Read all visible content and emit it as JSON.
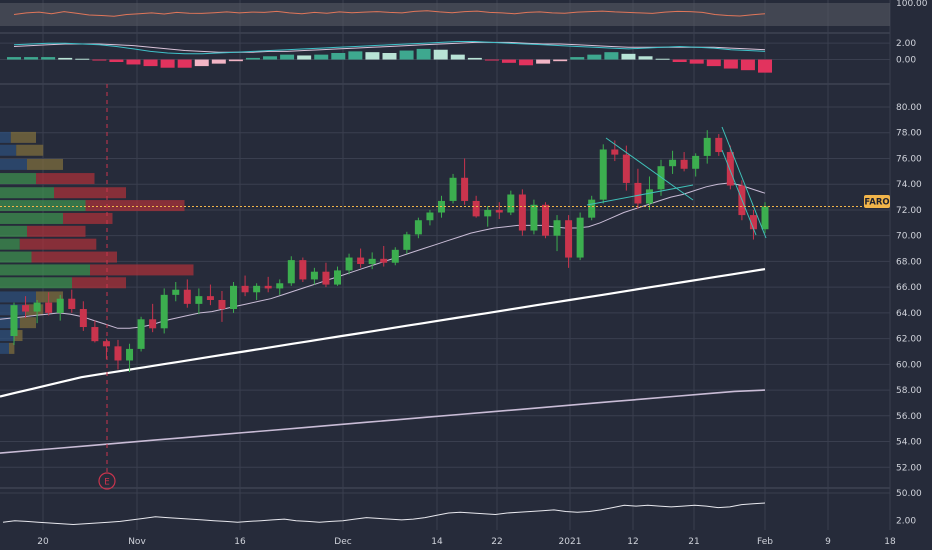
{
  "ticker": {
    "symbol": "FARO",
    "last_price": 72.27
  },
  "colors": {
    "background": "#262b3a",
    "grid": "#3a3f4f",
    "up": "#3cae4f",
    "down": "#c9344d",
    "ma_fast": "#c9bcd6",
    "ma_mid": "#ffffff",
    "ma_slow": "#c9bcd6",
    "trend": "#3fc0b8",
    "price_line": "#f2b54a",
    "vp_up": "#3e8f4f",
    "vp_down": "#a83239",
    "vp_up_va": "#2e4f7a",
    "vp_down_va": "#7d6e3d"
  },
  "chart_data": [
    {
      "type": "line",
      "panel": "rsi",
      "y_tick_labels": [
        "100.00"
      ],
      "ylim": [
        0,
        100
      ],
      "series": [
        {
          "values": [
            52,
            58,
            61,
            55,
            63,
            57,
            50,
            48,
            45,
            52,
            55,
            58,
            54,
            60,
            57,
            56,
            59,
            62,
            58,
            61,
            60,
            64,
            58,
            55,
            60,
            57,
            62,
            59,
            61,
            63,
            60,
            58,
            64,
            66,
            62,
            59,
            63,
            65,
            60,
            58,
            55,
            60,
            62,
            58,
            57,
            61,
            63,
            65,
            62,
            60,
            58,
            56,
            61,
            64,
            63,
            60,
            52,
            48,
            46,
            51,
            55
          ]
        }
      ]
    },
    {
      "type": "bar",
      "panel": "macd",
      "y_tick_labels": [
        "2.00",
        "0.00"
      ],
      "ylim": [
        -2.5,
        3
      ],
      "macd_line": [
        1.8,
        1.9,
        2.0,
        2.0,
        1.9,
        1.8,
        1.6,
        1.3,
        1.0,
        0.8,
        0.7,
        0.7,
        0.8,
        0.9,
        1.0,
        1.1,
        1.2,
        1.3,
        1.4,
        1.5,
        1.6,
        1.7,
        1.8,
        1.9,
        2.0,
        2.1,
        2.2,
        2.2,
        2.1,
        2.0,
        1.9,
        1.8,
        1.7,
        1.6,
        1.5,
        1.4,
        1.3,
        1.4,
        1.5,
        1.6,
        1.5,
        1.4,
        1.2,
        1.1,
        1.0
      ],
      "signal_line": [
        1.6,
        1.7,
        1.8,
        1.9,
        1.9,
        1.9,
        1.8,
        1.7,
        1.5,
        1.3,
        1.1,
        1.0,
        0.9,
        0.9,
        0.9,
        1.0,
        1.0,
        1.1,
        1.2,
        1.3,
        1.4,
        1.5,
        1.6,
        1.7,
        1.8,
        1.9,
        2.0,
        2.1,
        2.1,
        2.1,
        2.0,
        1.9,
        1.9,
        1.8,
        1.7,
        1.6,
        1.5,
        1.5,
        1.5,
        1.5,
        1.5,
        1.5,
        1.4,
        1.3,
        1.2
      ],
      "histogram": [
        0.3,
        0.3,
        0.3,
        0.2,
        0.1,
        -0.1,
        -0.3,
        -0.6,
        -0.8,
        -1.0,
        -1.0,
        -0.8,
        -0.5,
        -0.2,
        0.2,
        0.4,
        0.6,
        0.5,
        0.6,
        0.8,
        1.0,
        0.9,
        0.8,
        1.1,
        1.3,
        1.2,
        0.6,
        0.2,
        -0.1,
        -0.4,
        -0.7,
        -0.5,
        -0.2,
        0.3,
        0.6,
        0.9,
        0.7,
        0.4,
        0.1,
        -0.3,
        -0.5,
        -0.8,
        -1.1,
        -1.3,
        -1.6
      ]
    },
    {
      "type": "candlestick",
      "panel": "price",
      "y_tick_labels": [
        "80.00",
        "78.00",
        "76.00",
        "74.00",
        "72.00",
        "70.00",
        "68.00",
        "66.00",
        "64.00",
        "62.00",
        "60.00",
        "58.00",
        "56.00",
        "54.00",
        "52.00",
        "50.00"
      ],
      "ylim": [
        49.3,
        81.4
      ],
      "x_tick_labels": [
        "20",
        "Nov",
        "16",
        "Dec",
        "14",
        "22",
        "2021",
        "12",
        "21",
        "Feb",
        "9",
        "18"
      ],
      "earnings_marker": "E",
      "candles": [
        {
          "o": 62.2,
          "h": 64.8,
          "l": 61.5,
          "c": 64.6
        },
        {
          "o": 64.6,
          "h": 65.3,
          "l": 63.6,
          "c": 64.1
        },
        {
          "o": 64.1,
          "h": 65.0,
          "l": 63.2,
          "c": 64.8
        },
        {
          "o": 64.8,
          "h": 65.6,
          "l": 63.8,
          "c": 64.0
        },
        {
          "o": 64.0,
          "h": 65.4,
          "l": 63.4,
          "c": 65.1
        },
        {
          "o": 65.1,
          "h": 65.8,
          "l": 64.0,
          "c": 64.3
        },
        {
          "o": 64.3,
          "h": 64.9,
          "l": 62.6,
          "c": 62.9
        },
        {
          "o": 62.9,
          "h": 63.4,
          "l": 61.7,
          "c": 61.8
        },
        {
          "o": 61.8,
          "h": 62.0,
          "l": 60.4,
          "c": 61.4
        },
        {
          "o": 61.4,
          "h": 61.9,
          "l": 59.6,
          "c": 60.3
        },
        {
          "o": 60.3,
          "h": 61.6,
          "l": 59.4,
          "c": 61.2
        },
        {
          "o": 61.2,
          "h": 63.7,
          "l": 61.0,
          "c": 63.5
        },
        {
          "o": 63.5,
          "h": 64.7,
          "l": 62.5,
          "c": 62.8
        },
        {
          "o": 62.8,
          "h": 65.9,
          "l": 62.4,
          "c": 65.4
        },
        {
          "o": 65.4,
          "h": 66.4,
          "l": 64.9,
          "c": 65.8
        },
        {
          "o": 65.8,
          "h": 66.6,
          "l": 64.4,
          "c": 64.7
        },
        {
          "o": 64.7,
          "h": 65.9,
          "l": 63.9,
          "c": 65.3
        },
        {
          "o": 65.3,
          "h": 66.2,
          "l": 64.6,
          "c": 65.0
        },
        {
          "o": 65.0,
          "h": 65.7,
          "l": 63.3,
          "c": 64.3
        },
        {
          "o": 64.3,
          "h": 66.4,
          "l": 64.0,
          "c": 66.1
        },
        {
          "o": 66.1,
          "h": 66.9,
          "l": 65.3,
          "c": 65.6
        },
        {
          "o": 65.6,
          "h": 66.3,
          "l": 65.0,
          "c": 66.1
        },
        {
          "o": 66.1,
          "h": 66.8,
          "l": 65.6,
          "c": 65.9
        },
        {
          "o": 65.9,
          "h": 66.6,
          "l": 65.4,
          "c": 66.3
        },
        {
          "o": 66.3,
          "h": 68.4,
          "l": 66.1,
          "c": 68.1
        },
        {
          "o": 68.1,
          "h": 68.3,
          "l": 66.4,
          "c": 66.6
        },
        {
          "o": 66.6,
          "h": 67.5,
          "l": 66.2,
          "c": 67.2
        },
        {
          "o": 67.2,
          "h": 67.9,
          "l": 66.0,
          "c": 66.2
        },
        {
          "o": 66.2,
          "h": 67.6,
          "l": 66.1,
          "c": 67.3
        },
        {
          "o": 67.3,
          "h": 68.6,
          "l": 67.0,
          "c": 68.3
        },
        {
          "o": 68.3,
          "h": 69.0,
          "l": 67.5,
          "c": 67.8
        },
        {
          "o": 67.8,
          "h": 68.7,
          "l": 67.4,
          "c": 68.2
        },
        {
          "o": 68.2,
          "h": 69.2,
          "l": 67.6,
          "c": 67.9
        },
        {
          "o": 67.9,
          "h": 69.1,
          "l": 67.7,
          "c": 68.9
        },
        {
          "o": 68.9,
          "h": 70.3,
          "l": 68.6,
          "c": 70.1
        },
        {
          "o": 70.1,
          "h": 71.4,
          "l": 69.8,
          "c": 71.2
        },
        {
          "o": 71.2,
          "h": 72.0,
          "l": 70.8,
          "c": 71.8
        },
        {
          "o": 71.8,
          "h": 73.1,
          "l": 71.4,
          "c": 72.7
        },
        {
          "o": 72.7,
          "h": 74.8,
          "l": 72.5,
          "c": 74.5
        },
        {
          "o": 74.5,
          "h": 76.0,
          "l": 72.4,
          "c": 72.7
        },
        {
          "o": 72.7,
          "h": 73.1,
          "l": 71.4,
          "c": 71.5
        },
        {
          "o": 71.5,
          "h": 72.3,
          "l": 70.7,
          "c": 72.0
        },
        {
          "o": 72.0,
          "h": 72.6,
          "l": 71.3,
          "c": 71.8
        },
        {
          "o": 71.8,
          "h": 73.5,
          "l": 71.6,
          "c": 73.2
        },
        {
          "o": 73.2,
          "h": 73.6,
          "l": 70.0,
          "c": 70.4
        },
        {
          "o": 70.4,
          "h": 72.8,
          "l": 70.1,
          "c": 72.4
        },
        {
          "o": 72.4,
          "h": 72.6,
          "l": 69.8,
          "c": 70.0
        },
        {
          "o": 70.0,
          "h": 71.6,
          "l": 68.8,
          "c": 71.2
        },
        {
          "o": 71.2,
          "h": 71.6,
          "l": 67.5,
          "c": 68.3
        },
        {
          "o": 68.3,
          "h": 71.8,
          "l": 68.1,
          "c": 71.4
        },
        {
          "o": 71.4,
          "h": 73.1,
          "l": 71.2,
          "c": 72.8
        },
        {
          "o": 72.8,
          "h": 77.1,
          "l": 72.5,
          "c": 76.7
        },
        {
          "o": 76.7,
          "h": 77.4,
          "l": 75.8,
          "c": 76.3
        },
        {
          "o": 76.3,
          "h": 77.0,
          "l": 73.5,
          "c": 74.1
        },
        {
          "o": 74.1,
          "h": 75.2,
          "l": 72.1,
          "c": 72.5
        },
        {
          "o": 72.5,
          "h": 74.6,
          "l": 72.0,
          "c": 73.6
        },
        {
          "o": 73.6,
          "h": 75.9,
          "l": 73.1,
          "c": 75.4
        },
        {
          "o": 75.4,
          "h": 76.6,
          "l": 74.8,
          "c": 75.9
        },
        {
          "o": 75.9,
          "h": 76.5,
          "l": 75.0,
          "c": 75.2
        },
        {
          "o": 75.2,
          "h": 76.4,
          "l": 74.6,
          "c": 76.2
        },
        {
          "o": 76.2,
          "h": 78.2,
          "l": 75.6,
          "c": 77.6
        },
        {
          "o": 77.6,
          "h": 77.9,
          "l": 76.2,
          "c": 76.5
        },
        {
          "o": 76.5,
          "h": 77.0,
          "l": 73.6,
          "c": 73.9
        },
        {
          "o": 73.9,
          "h": 74.3,
          "l": 71.2,
          "c": 71.6
        },
        {
          "o": 71.6,
          "h": 72.0,
          "l": 69.7,
          "c": 70.5
        },
        {
          "o": 70.5,
          "h": 72.6,
          "l": 70.2,
          "c": 72.27
        }
      ],
      "ma_fast": [
        63.5,
        63.6,
        63.7,
        63.8,
        63.9,
        64.0,
        63.9,
        63.7,
        63.4,
        63.1,
        62.8,
        62.8,
        62.9,
        63.1,
        63.4,
        63.6,
        63.8,
        64.0,
        64.1,
        64.3,
        64.5,
        64.7,
        64.9,
        65.1,
        65.4,
        65.7,
        66.0,
        66.3,
        66.6,
        66.9,
        67.2,
        67.5,
        67.8,
        68.1,
        68.4,
        68.7,
        69.0,
        69.3,
        69.6,
        69.9,
        70.2,
        70.4,
        70.6,
        70.7,
        70.8,
        70.8,
        70.8,
        70.7,
        70.6,
        70.6,
        70.7,
        71.0,
        71.4,
        71.8,
        72.1,
        72.4,
        72.7,
        73.0,
        73.2,
        73.5,
        73.8,
        74.0,
        74.1,
        73.9,
        73.6,
        73.3
      ],
      "ma_mid": [
        57.5,
        57.8,
        58.1,
        58.4,
        58.7,
        59.0,
        59.2,
        59.4,
        59.6,
        59.8,
        60.0,
        60.2,
        60.4,
        60.6,
        60.8,
        61.0,
        61.2,
        61.4,
        61.6,
        61.8,
        62.0,
        62.2,
        62.4,
        62.6,
        62.8,
        63.0,
        63.2,
        63.4,
        63.6,
        63.8,
        64.0,
        64.2,
        64.4,
        64.6,
        64.8,
        65.0,
        65.2,
        65.4,
        65.6,
        65.8,
        66.0,
        66.2,
        66.4,
        66.6,
        66.8,
        67.0,
        67.2,
        67.4
      ],
      "ma_slow": [
        53.1,
        53.3,
        53.5,
        53.7,
        53.9,
        54.1,
        54.3,
        54.5,
        54.7,
        54.9,
        55.1,
        55.3,
        55.5,
        55.7,
        55.9,
        56.1,
        56.3,
        56.5,
        56.7,
        56.9,
        57.1,
        57.3,
        57.5,
        57.7,
        57.9,
        58.0
      ],
      "volume_profile": [
        {
          "price": 77.6,
          "up": 12,
          "down": 28,
          "value_area": true
        },
        {
          "price": 76.6,
          "up": 18,
          "down": 30,
          "value_area": true
        },
        {
          "price": 75.5,
          "up": 30,
          "down": 40,
          "value_area": true
        },
        {
          "price": 74.4,
          "up": 40,
          "down": 65,
          "value_area": false
        },
        {
          "price": 73.3,
          "up": 60,
          "down": 80,
          "value_area": false
        },
        {
          "price": 72.3,
          "up": 95,
          "down": 110,
          "value_area": false
        },
        {
          "price": 71.3,
          "up": 70,
          "down": 55,
          "value_area": false
        },
        {
          "price": 70.3,
          "up": 30,
          "down": 65,
          "value_area": false
        },
        {
          "price": 69.3,
          "up": 22,
          "down": 85,
          "value_area": false
        },
        {
          "price": 68.3,
          "up": 35,
          "down": 95,
          "value_area": false
        },
        {
          "price": 67.3,
          "up": 100,
          "down": 115,
          "value_area": false
        },
        {
          "price": 66.3,
          "up": 80,
          "down": 60,
          "value_area": false
        },
        {
          "price": 65.2,
          "up": 40,
          "down": 30,
          "value_area": true
        },
        {
          "price": 64.2,
          "up": 28,
          "down": 20,
          "value_area": true
        },
        {
          "price": 63.2,
          "up": 22,
          "down": 18,
          "value_area": true
        },
        {
          "price": 62.2,
          "up": 15,
          "down": 10,
          "value_area": true
        },
        {
          "price": 61.2,
          "up": 10,
          "down": 6,
          "value_area": true
        }
      ]
    },
    {
      "type": "line",
      "panel": "atr",
      "y_tick_labels": [
        "2.00"
      ],
      "ylim": [
        1.0,
        4.0
      ],
      "series": [
        {
          "values": [
            1.9,
            2.0,
            1.95,
            1.9,
            1.85,
            1.8,
            1.75,
            1.8,
            1.85,
            1.9,
            1.95,
            2.05,
            2.15,
            2.25,
            2.2,
            2.15,
            2.1,
            2.05,
            2.0,
            1.95,
            1.9,
            1.95,
            2.0,
            2.05,
            2.1,
            2.0,
            1.95,
            1.9,
            1.95,
            2.0,
            2.1,
            2.2,
            2.15,
            2.1,
            2.05,
            2.1,
            2.2,
            2.35,
            2.5,
            2.55,
            2.5,
            2.45,
            2.4,
            2.5,
            2.55,
            2.6,
            2.65,
            2.7,
            2.6,
            2.55,
            2.6,
            2.7,
            2.85,
            3.0,
            2.95,
            3.0,
            2.95,
            2.9,
            2.95,
            3.0,
            2.95,
            2.85,
            2.9,
            3.05,
            3.1,
            3.15
          ]
        }
      ]
    }
  ]
}
